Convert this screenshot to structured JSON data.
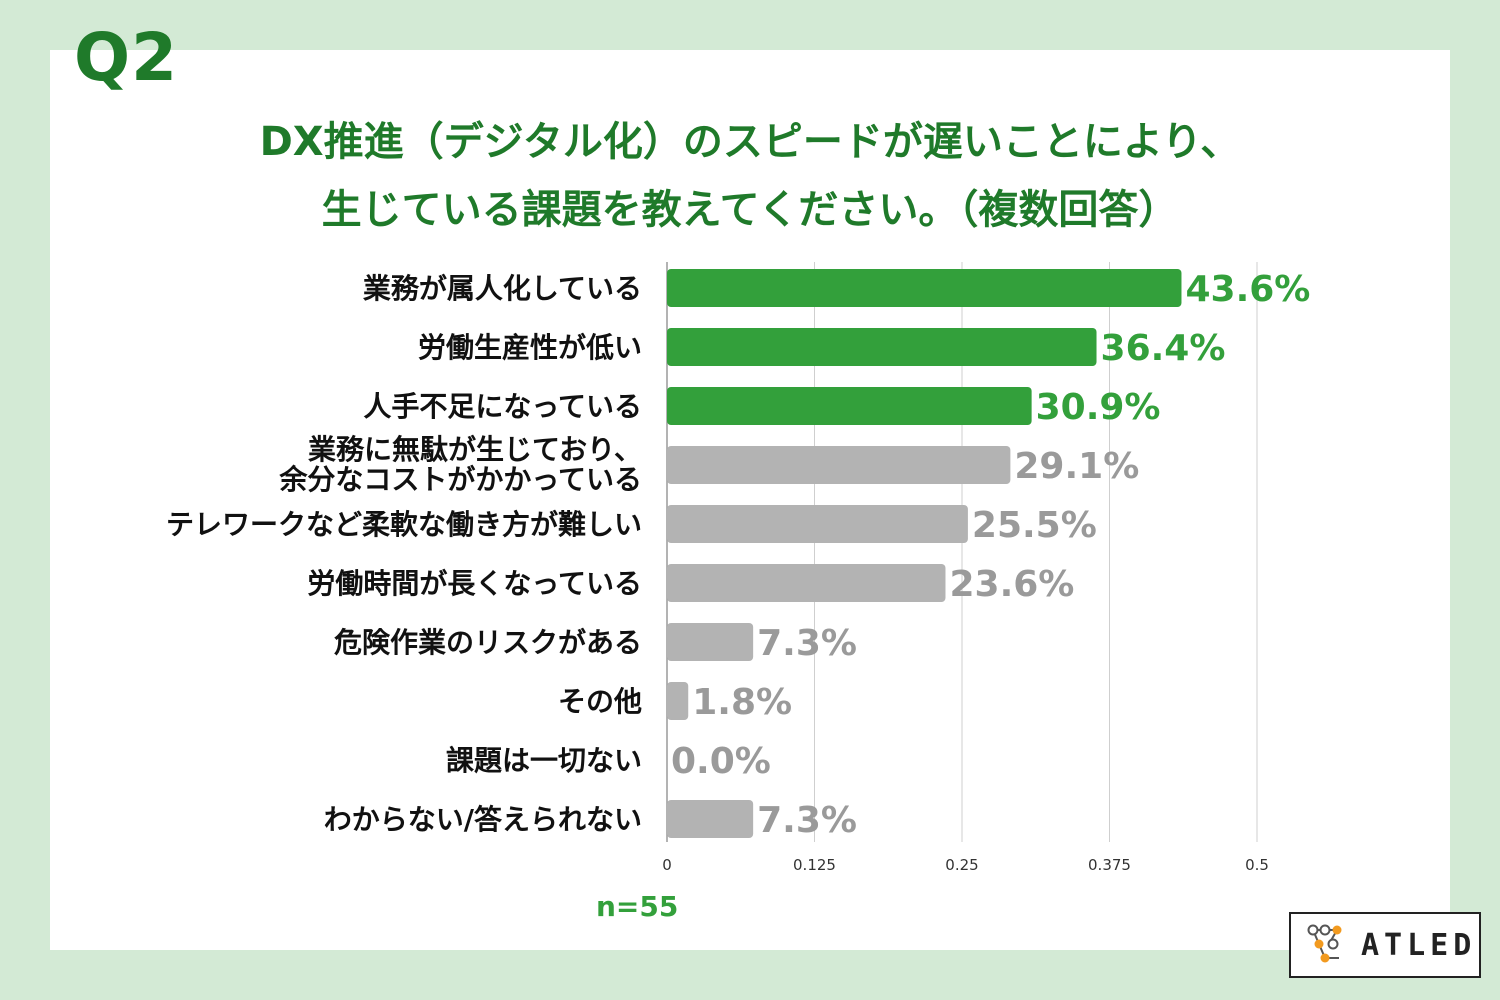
{
  "question_label": "Q2",
  "title_line1": "DX推進（デジタル化）のスピードが遅いことにより、",
  "title_line2": "生じている課題を教えてください。（複数回答）",
  "sample_note": "n=55",
  "brand": {
    "name": "ATLED",
    "icon": "molecule-node-logo-icon"
  },
  "colors": {
    "highlight": "#33a03b",
    "normal": "#b3b3b3",
    "highlight_text": "#33a03b",
    "normal_text": "#9a9a9a",
    "title": "#1f7a2a"
  },
  "chart_data": {
    "type": "bar",
    "orientation": "horizontal",
    "categories": [
      [
        "業務が属人化している"
      ],
      [
        "労働生産性が低い"
      ],
      [
        "人手不足になっている"
      ],
      [
        "業務に無駄が生じており、",
        "余分なコストがかかっている"
      ],
      [
        "テレワークなど柔軟な働き方が難しい"
      ],
      [
        "労働時間が長くなっている"
      ],
      [
        "危険作業のリスクがある"
      ],
      [
        "その他"
      ],
      [
        "課題は一切ない"
      ],
      [
        "わからない/答えられない"
      ]
    ],
    "values": [
      0.436,
      0.364,
      0.309,
      0.291,
      0.255,
      0.236,
      0.073,
      0.018,
      0.0,
      0.073
    ],
    "value_labels": [
      "43.6%",
      "36.4%",
      "30.9%",
      "29.1%",
      "25.5%",
      "23.6%",
      "7.3%",
      "1.8%",
      "0.0%",
      "7.3%"
    ],
    "highlighted": [
      true,
      true,
      true,
      false,
      false,
      false,
      false,
      false,
      false,
      false
    ],
    "xlim": [
      0,
      0.5
    ],
    "xticks": [
      0,
      0.125,
      0.25,
      0.375,
      0.5
    ],
    "xtick_labels": [
      "0",
      "0.125",
      "0.25",
      "0.375",
      "0.5"
    ],
    "grid": true
  }
}
